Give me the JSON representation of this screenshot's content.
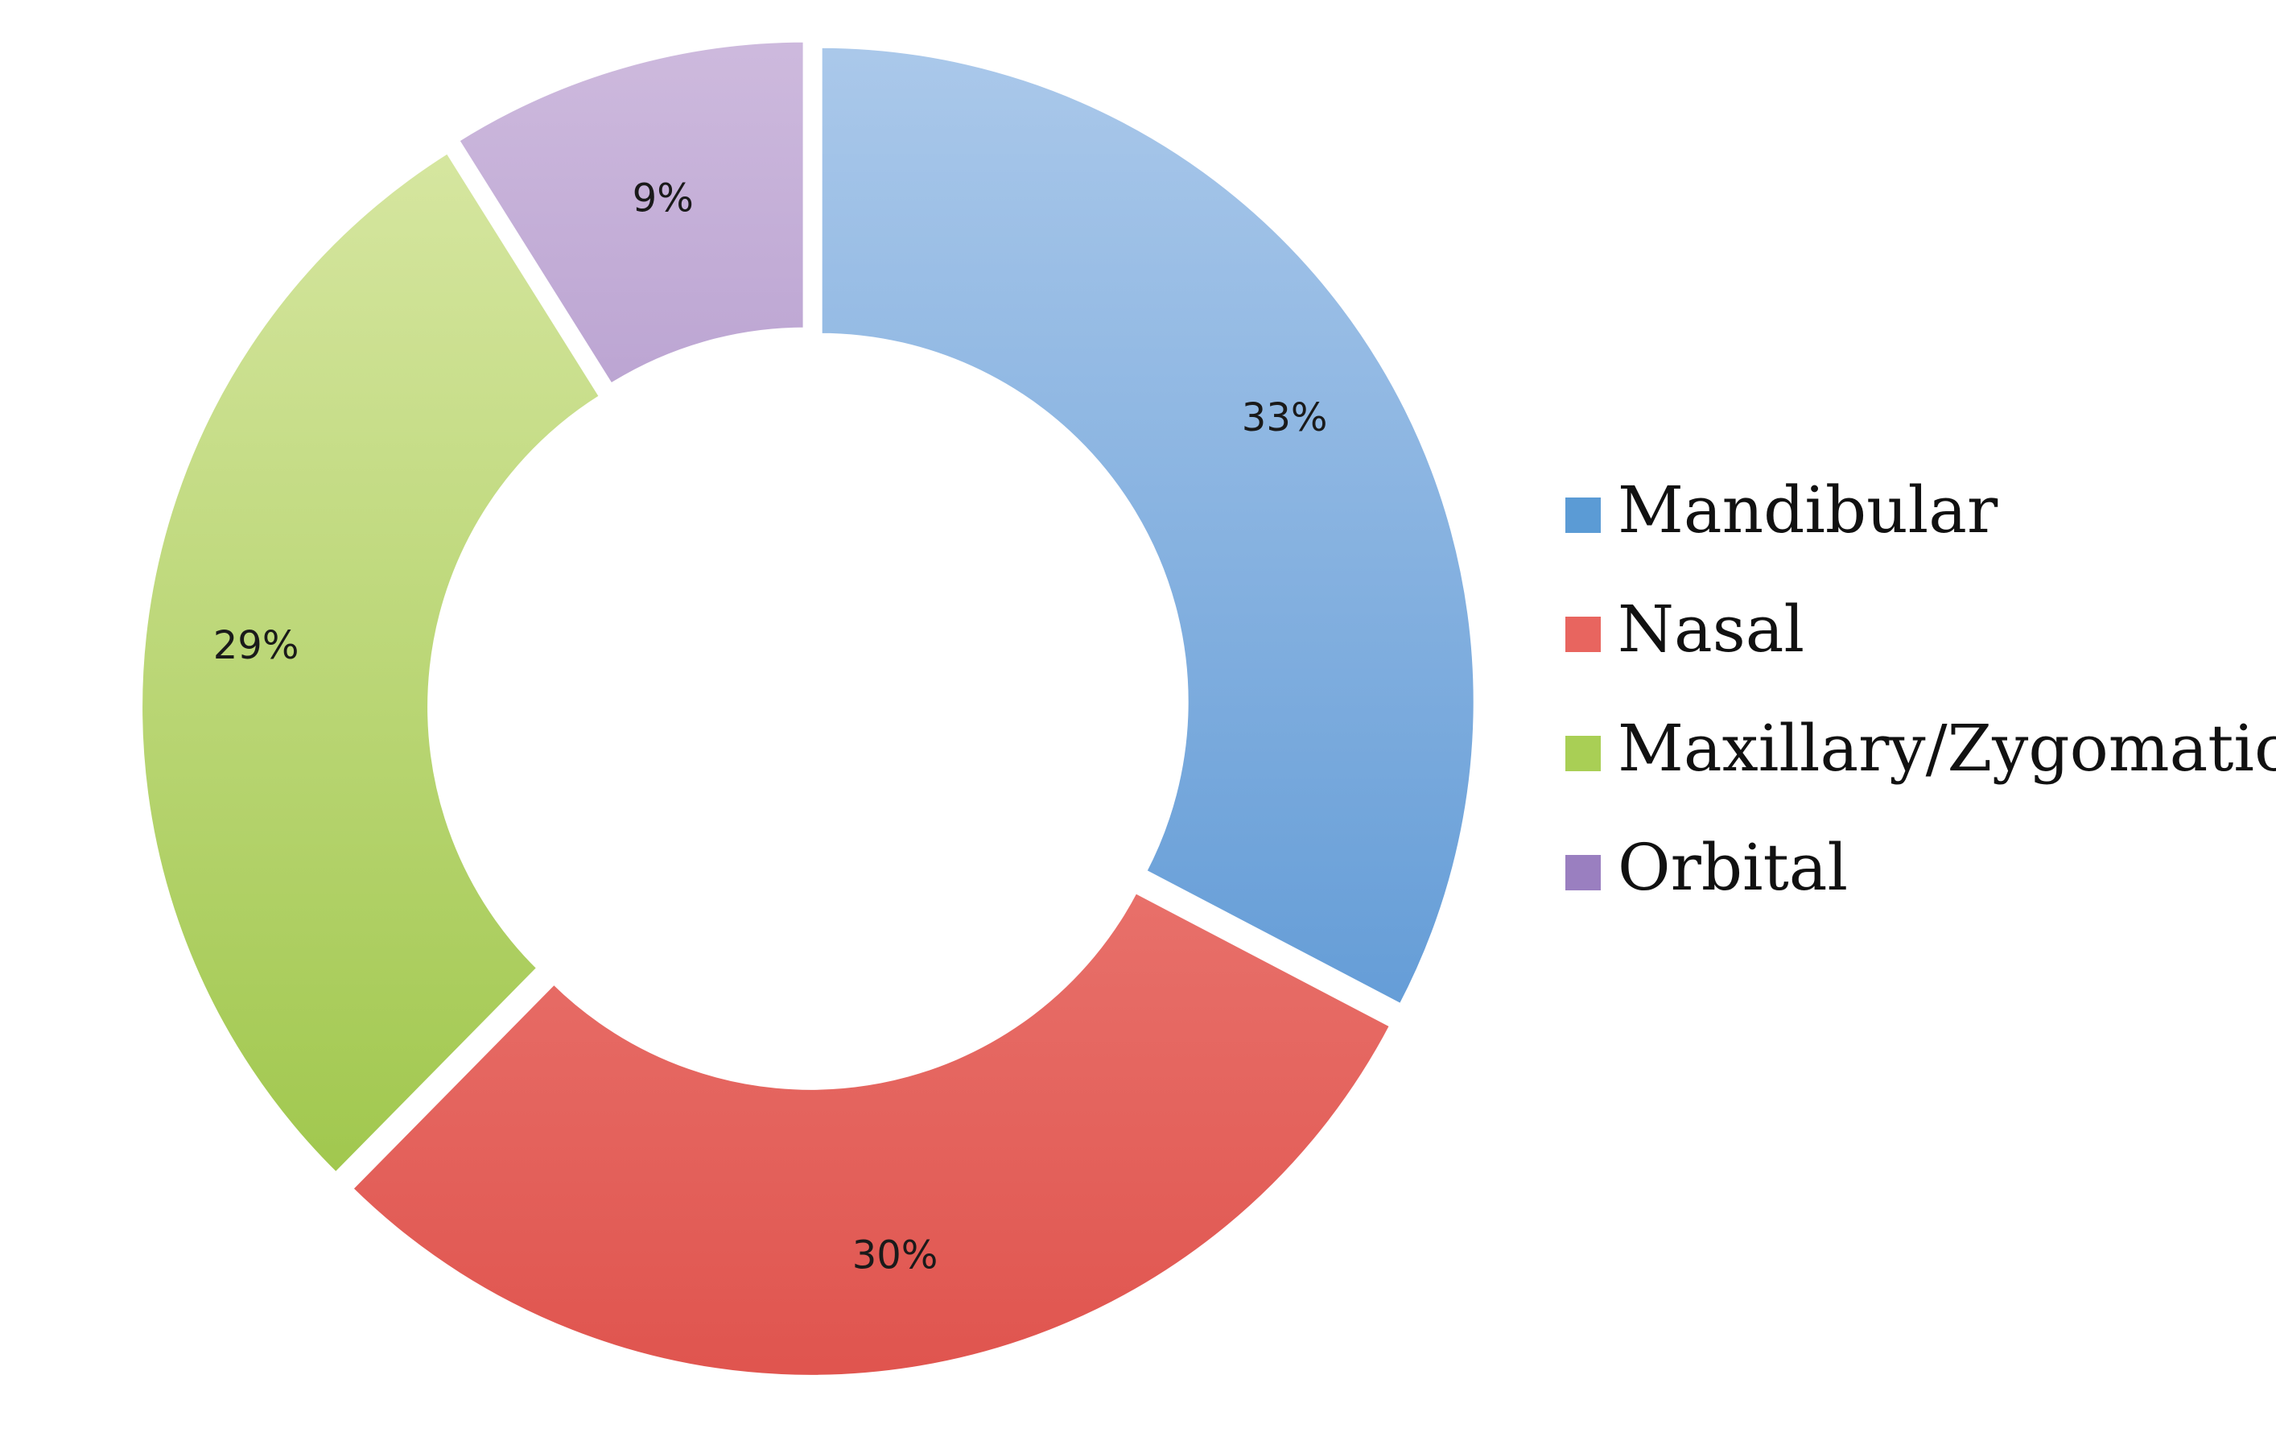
{
  "chart_data": {
    "type": "pie",
    "variant": "donut",
    "categories": [
      "Mandibular",
      "Nasal",
      "Maxillary/Zygomatic",
      "Orbital"
    ],
    "values": [
      33,
      30,
      29,
      9
    ],
    "value_labels": [
      "33%",
      "30%",
      "29%",
      "9%"
    ],
    "colors": [
      "#5b9bd5",
      "#e8655f",
      "#a9cf55",
      "#9a7fc0"
    ],
    "colors_light": [
      "#aac8ea",
      "#f6a09a",
      "#dbe9a8",
      "#cdb9dd"
    ],
    "colors_dark": [
      "#4b8dd0",
      "#e0554f",
      "#97c23f",
      "#8a6ab3"
    ],
    "title": "",
    "legend_position": "right",
    "exploded": true
  },
  "legend": {
    "items": [
      {
        "label": "Mandibular",
        "color": "#5b9bd5"
      },
      {
        "label": "Nasal",
        "color": "#e8655f"
      },
      {
        "label": "Maxillary/Zygomatic",
        "color": "#a9cf55"
      },
      {
        "label": "Orbital",
        "color": "#9a7fc0"
      }
    ]
  }
}
